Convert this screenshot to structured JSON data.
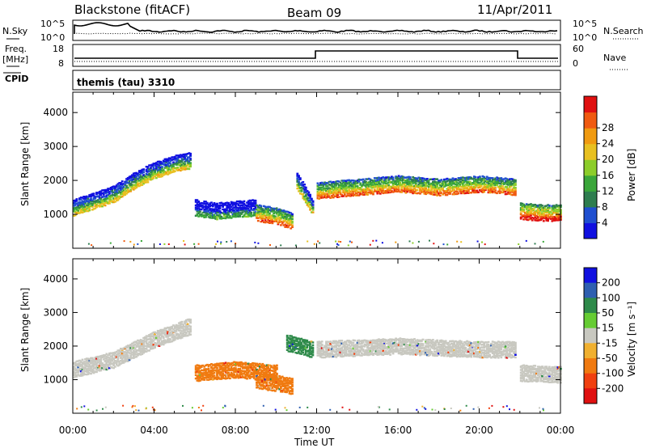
{
  "header": {
    "station": "Blackstone (fitACF)",
    "beam": "Beam 09",
    "date": "11/Apr/2011"
  },
  "status_panels": {
    "nsky_label": "N.Sky",
    "nsearch_label": "N.Search",
    "noise_ticks": [
      "10^5",
      "10^0"
    ],
    "freq_label_1": "Freq.",
    "freq_label_2": "[MHz]",
    "freq_ticks": [
      "18",
      "8"
    ],
    "nave_label": "Nave",
    "nave_ticks": [
      "60",
      "0"
    ],
    "cpid_label": "CPID",
    "cpid_value": "themis (tau) 3310"
  },
  "colors": {
    "power_scale": [
      "#1010e0",
      "#1f4fd0",
      "#2e7d4f",
      "#3aa63a",
      "#8ccd2a",
      "#e8c020",
      "#f09a10",
      "#f05a10",
      "#e01010"
    ],
    "velocity_scale": [
      "#1010e0",
      "#2e5fb0",
      "#2e8a4a",
      "#66cc33",
      "#c8c8c0",
      "#f0b030",
      "#f07a10",
      "#f04010",
      "#e01010"
    ]
  },
  "chart_data": [
    {
      "type": "heatmap",
      "title": "Power",
      "xlabel": "",
      "ylabel": "Slant Range [km]",
      "xlim": [
        0,
        24
      ],
      "ylim": [
        0,
        4600
      ],
      "x_ticks": [
        "00:00",
        "04:00",
        "08:00",
        "12:00",
        "16:00",
        "20:00",
        "00:00"
      ],
      "y_ticks": [
        1000,
        2000,
        3000,
        4000
      ],
      "colorbar": {
        "label": "Power [dB]",
        "ticks": [
          "4",
          "8",
          "12",
          "16",
          "20",
          "24",
          "28"
        ]
      },
      "echo_bands": [
        {
          "t": [
            0.0,
            1.0,
            2.0,
            3.0,
            4.0,
            5.0,
            5.8
          ],
          "range_km": [
            1000,
            1200,
            1400,
            1800,
            2100,
            2300,
            2400
          ],
          "power_db": 20
        },
        {
          "t": [
            6.0,
            7.0,
            8.0,
            9.0
          ],
          "range_km": [
            1000,
            900,
            950,
            1000
          ],
          "power_db": 12
        },
        {
          "t": [
            9.0,
            10.0,
            10.8
          ],
          "range_km": [
            850,
            750,
            600
          ],
          "power_db": 24
        },
        {
          "t": [
            11.0,
            11.8
          ],
          "range_km": [
            1800,
            1000
          ],
          "power_db": 20
        },
        {
          "t": [
            12.0,
            14.0,
            16.0,
            18.0,
            20.0,
            21.8
          ],
          "range_km": [
            1500,
            1600,
            1700,
            1600,
            1700,
            1600
          ],
          "power_db": 24
        },
        {
          "t": [
            22.0,
            23.0,
            24.0
          ],
          "range_km": [
            900,
            850,
            850
          ],
          "power_db": 28
        }
      ]
    },
    {
      "type": "heatmap",
      "title": "Velocity",
      "xlabel": "Time UT",
      "ylabel": "Slant Range [km]",
      "xlim": [
        0,
        24
      ],
      "ylim": [
        0,
        4600
      ],
      "x_ticks": [
        "00:00",
        "04:00",
        "08:00",
        "12:00",
        "16:00",
        "20:00",
        "00:00"
      ],
      "y_ticks": [
        1000,
        2000,
        3000,
        4000
      ],
      "colorbar": {
        "label": "Velocity [m s⁻¹]",
        "ticks": [
          "200",
          "100",
          "50",
          "15",
          "-15",
          "-50",
          "-100",
          "-200"
        ]
      },
      "echo_bands": [
        {
          "t": [
            0.0,
            2.0,
            4.0,
            5.8
          ],
          "range_km": [
            1100,
            1400,
            2000,
            2400
          ],
          "velocity": 0
        },
        {
          "t": [
            6.0,
            8.0,
            10.0
          ],
          "range_km": [
            1000,
            1100,
            1000
          ],
          "velocity": -60
        },
        {
          "t": [
            9.0,
            10.8
          ],
          "range_km": [
            800,
            600
          ],
          "velocity": -60
        },
        {
          "t": [
            10.5,
            11.8
          ],
          "range_km": [
            1900,
            1700
          ],
          "velocity": 40
        },
        {
          "t": [
            12.0,
            16.0,
            20.0,
            21.8
          ],
          "range_km": [
            1700,
            1800,
            1700,
            1700
          ],
          "velocity": 0
        },
        {
          "t": [
            22.0,
            24.0
          ],
          "range_km": [
            1000,
            950
          ],
          "velocity": 0
        }
      ]
    }
  ]
}
